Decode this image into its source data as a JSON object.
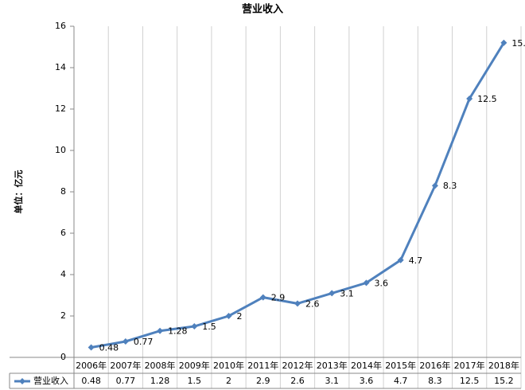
{
  "chart_data": {
    "type": "line",
    "title": "营业收入",
    "y_label": "单位：亿元",
    "categories": [
      "2006年",
      "2007年",
      "2008年",
      "2009年",
      "2010年",
      "2011年",
      "2012年",
      "2013年",
      "2014年",
      "2015年",
      "2016年",
      "2017年",
      "2018年"
    ],
    "series": [
      {
        "name": "营业收入",
        "color": "#4f81bd",
        "values": [
          0.48,
          0.77,
          1.28,
          1.5,
          2,
          2.9,
          2.6,
          3.1,
          3.6,
          4.7,
          8.3,
          12.5,
          15.2
        ]
      }
    ],
    "ylim": [
      0,
      16
    ],
    "yticks": [
      0,
      2,
      4,
      6,
      8,
      10,
      12,
      14,
      16
    ],
    "grid": false
  }
}
